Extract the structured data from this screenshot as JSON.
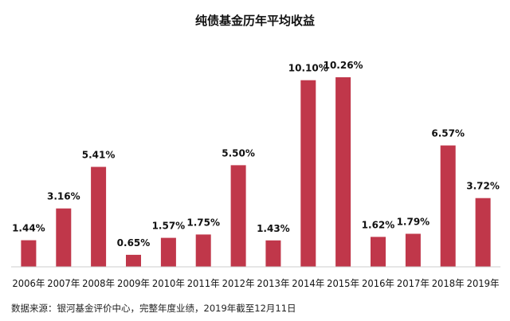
{
  "chart_data": {
    "type": "bar",
    "title": "纯债基金历年平均收益",
    "categories": [
      "2006年",
      "2007年",
      "2008年",
      "2009年",
      "2010年",
      "2011年",
      "2012年",
      "2013年",
      "2014年",
      "2015年",
      "2016年",
      "2017年",
      "2018年",
      "2019年"
    ],
    "values": [
      1.44,
      3.16,
      5.41,
      0.65,
      1.57,
      1.75,
      5.5,
      1.43,
      10.1,
      10.26,
      1.62,
      1.79,
      6.57,
      3.72
    ],
    "value_labels": [
      "1.44%",
      "3.16%",
      "5.41%",
      "0.65%",
      "1.57%",
      "1.75%",
      "5.50%",
      "1.43%",
      "10.10%",
      "10.26%",
      "1.62%",
      "1.79%",
      "6.57%",
      "3.72%"
    ],
    "ylim": [
      0,
      10.26
    ],
    "grid": false,
    "legend": "none",
    "bar_color": "#c0374a",
    "source": "数据来源：银河基金评价中心，完整年度业绩，2019年截至12月11日"
  }
}
